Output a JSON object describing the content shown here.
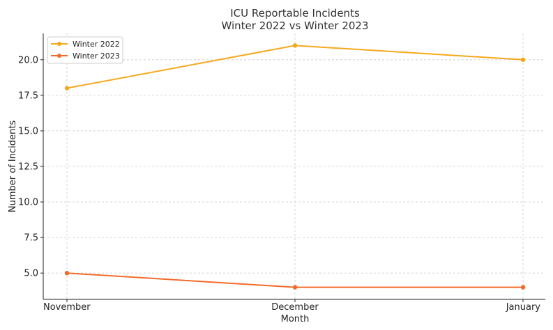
{
  "chart_data": {
    "type": "line",
    "title": "ICU Reportable Incidents",
    "subtitle": "Winter 2022 vs Winter 2023",
    "xlabel": "Month",
    "ylabel": "Number of Incidents",
    "categories": [
      "November",
      "December",
      "January"
    ],
    "series": [
      {
        "name": "Winter 2022",
        "values": [
          18,
          21,
          20
        ],
        "color": "#f5a81c"
      },
      {
        "name": "Winter 2023",
        "values": [
          5,
          4,
          4
        ],
        "color": "#f26b2a"
      }
    ],
    "ylim": [
      3.15,
      21.85
    ],
    "yticks": [
      5.0,
      7.5,
      10.0,
      12.5,
      15.0,
      17.5,
      20.0
    ],
    "ytick_labels": [
      "5.0",
      "7.5",
      "10.0",
      "12.5",
      "15.0",
      "17.5",
      "20.0"
    ],
    "grid": true,
    "legend_position": "top-left"
  }
}
